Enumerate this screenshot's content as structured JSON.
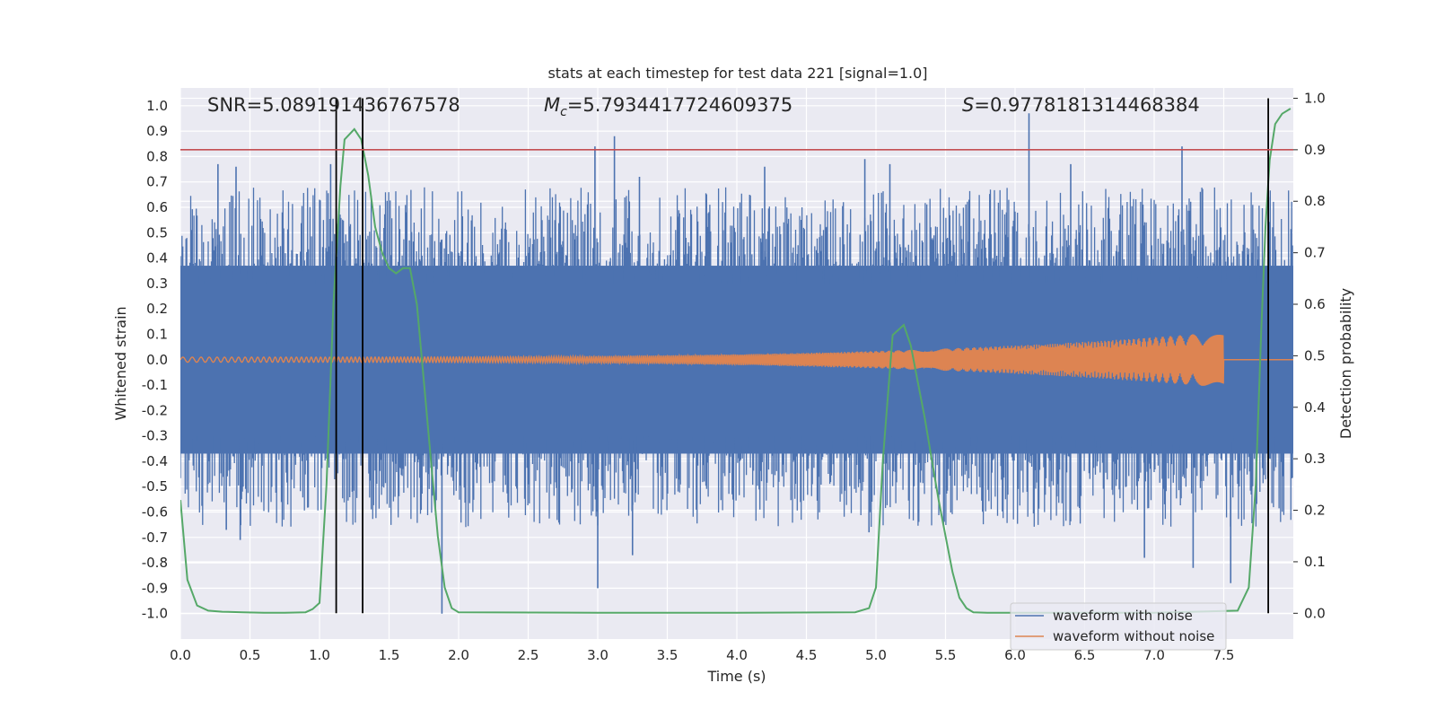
{
  "chart_data": {
    "type": "line",
    "title": "stats at each timestep for test data 221 [signal=1.0]",
    "xlabel": "Time (s)",
    "ylabel_left": "Whitened strain",
    "ylabel_right": "Detection probability",
    "xlim": [
      0.0,
      8.0
    ],
    "ylim_left": [
      -1.1,
      1.07
    ],
    "ylim_right": [
      -0.05,
      1.02
    ],
    "x_ticks": [
      "0.0",
      "0.5",
      "1.0",
      "1.5",
      "2.0",
      "2.5",
      "3.0",
      "3.5",
      "4.0",
      "4.5",
      "5.0",
      "5.5",
      "6.0",
      "6.5",
      "7.0",
      "7.5"
    ],
    "y_left_ticks": [
      "1.0",
      "0.9",
      "0.8",
      "0.7",
      "0.6",
      "0.5",
      "0.4",
      "0.3",
      "0.2",
      "0.1",
      "0.0",
      "-0.1",
      "-0.2",
      "-0.3",
      "-0.4",
      "-0.5",
      "-0.6",
      "-0.7",
      "-0.8",
      "-0.9",
      "-1.0"
    ],
    "y_right_ticks": [
      "1.0",
      "0.9",
      "0.8",
      "0.7",
      "0.6",
      "0.5",
      "0.4",
      "0.3",
      "0.2",
      "0.1",
      "0.0"
    ],
    "grid": true,
    "annotations": {
      "snr": "SNR=5.089191436767578",
      "mc_symbol": "M",
      "mc_sub": "c",
      "mc_value": "=5.7934417724609375",
      "s_symbol": "S",
      "s_value": "=0.9778181314468384"
    },
    "threshold_line": {
      "y_right": 0.9,
      "color": "#c44e52"
    },
    "vertical_lines": [
      1.12,
      1.31,
      7.82
    ],
    "noisy_waveform": {
      "name": "waveform with noise",
      "color": "#4c72b0",
      "envelope_upper": 0.37,
      "envelope_lower": -0.37,
      "spikes": [
        {
          "x": 0.27,
          "y": 0.77
        },
        {
          "x": 0.4,
          "y": 0.76
        },
        {
          "x": 1.08,
          "y": 0.77
        },
        {
          "x": 2.98,
          "y": 0.84
        },
        {
          "x": 3.12,
          "y": 0.88
        },
        {
          "x": 3.3,
          "y": 0.72
        },
        {
          "x": 4.2,
          "y": 0.76
        },
        {
          "x": 4.92,
          "y": 0.79
        },
        {
          "x": 5.1,
          "y": 0.77
        },
        {
          "x": 6.1,
          "y": 0.97
        },
        {
          "x": 6.4,
          "y": 0.77
        },
        {
          "x": 7.2,
          "y": 0.84
        },
        {
          "x": 3.0,
          "y": -0.9
        },
        {
          "x": 1.88,
          "y": -1.0
        },
        {
          "x": 4.95,
          "y": -0.68
        },
        {
          "x": 6.93,
          "y": -0.78
        },
        {
          "x": 7.28,
          "y": -0.82
        },
        {
          "x": 7.55,
          "y": -0.88
        },
        {
          "x": 3.25,
          "y": -0.77
        },
        {
          "x": 0.33,
          "y": -0.67
        },
        {
          "x": 0.43,
          "y": -0.71
        }
      ]
    },
    "clean_waveform": {
      "name": "waveform without noise",
      "color": "#dd8452",
      "amplitude_start": 0.01,
      "amplitude_end": 0.11,
      "end_time": 7.5
    },
    "detection_probability": {
      "color": "#55a868",
      "t": [
        0.0,
        0.05,
        0.12,
        0.2,
        0.3,
        0.45,
        0.6,
        0.75,
        0.9,
        0.95,
        1.0,
        1.05,
        1.1,
        1.15,
        1.18,
        1.25,
        1.3,
        1.35,
        1.4,
        1.45,
        1.5,
        1.55,
        1.6,
        1.65,
        1.7,
        1.75,
        1.8,
        1.85,
        1.9,
        1.95,
        2.0,
        3.0,
        4.0,
        4.85,
        4.95,
        5.0,
        5.05,
        5.12,
        5.2,
        5.25,
        5.3,
        5.35,
        5.4,
        5.45,
        5.5,
        5.55,
        5.6,
        5.65,
        5.7,
        5.8,
        6.0,
        7.0,
        7.6,
        7.68,
        7.73,
        7.77,
        7.8,
        7.83,
        7.87,
        7.92,
        7.98
      ],
      "p": [
        0.22,
        0.065,
        0.015,
        0.005,
        0.003,
        0.002,
        0.001,
        0.001,
        0.002,
        0.008,
        0.02,
        0.25,
        0.6,
        0.83,
        0.92,
        0.94,
        0.92,
        0.85,
        0.75,
        0.7,
        0.67,
        0.66,
        0.67,
        0.67,
        0.6,
        0.45,
        0.3,
        0.15,
        0.05,
        0.01,
        0.002,
        0.001,
        0.001,
        0.002,
        0.01,
        0.05,
        0.3,
        0.54,
        0.56,
        0.52,
        0.45,
        0.38,
        0.3,
        0.22,
        0.15,
        0.08,
        0.03,
        0.01,
        0.002,
        0.001,
        0.001,
        0.001,
        0.005,
        0.05,
        0.25,
        0.55,
        0.75,
        0.88,
        0.95,
        0.97,
        0.98
      ]
    },
    "legend": {
      "placement": "bottom-right",
      "entries": [
        "waveform with noise",
        "waveform without noise"
      ]
    }
  }
}
